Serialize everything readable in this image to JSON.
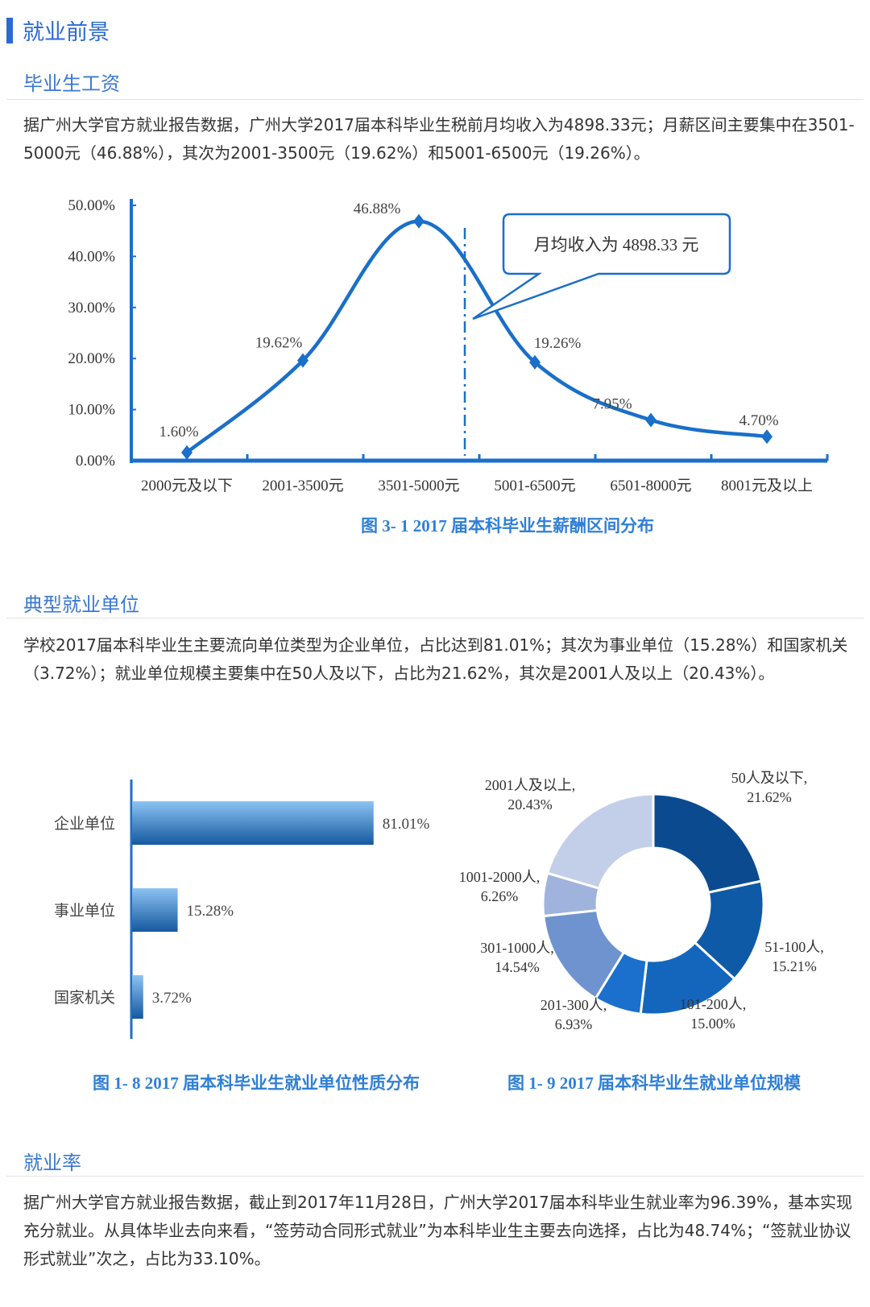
{
  "page": {
    "title": "就业前景",
    "sections": [
      {
        "heading": "毕业生工资",
        "text": "据广州大学官方就业报告数据，广州大学2017届本科毕业生税前月均收入为4898.33元；月薪区间主要集中在3501-5000元（46.88%），其次为2001-3500元（19.62%）和5001-6500元（19.26%）。"
      },
      {
        "heading": "典型就业单位",
        "text": "学校2017届本科毕业生主要流向单位类型为企业单位，占比达到81.01%；其次为事业单位（15.28%）和国家机关（3.72%）；就业单位规模主要集中在50人及以下，占比为21.62%，其次是2001人及以上（20.43%）。"
      },
      {
        "heading": "就业率",
        "text": "据广州大学官方就业报告数据，截止到2017年11月28日，广州大学2017届本科毕业生就业率为96.39%，基本实现充分就业。从具体毕业去向来看，“签劳动合同形式就业”为本科毕业生主要去向选择，占比为48.74%；“签就业协议形式就业”次之，占比为33.10%。"
      }
    ],
    "accent_color": "#2a6bd0"
  },
  "chart_data": [
    {
      "type": "line",
      "title": "图 3- 1   2017 届本科毕业生薪酬区间分布",
      "categories": [
        "2000元及以下",
        "2001-3500元",
        "3501-5000元",
        "5001-6500元",
        "6501-8000元",
        "8001元及以上"
      ],
      "values": [
        1.6,
        19.62,
        46.88,
        19.26,
        7.95,
        4.7
      ],
      "data_labels": [
        "1.60%",
        "19.62%",
        "46.88%",
        "19.26%",
        "7.95%",
        "4.70%"
      ],
      "yticks": [
        "0.00%",
        "10.00%",
        "20.00%",
        "30.00%",
        "40.00%",
        "50.00%"
      ],
      "ylim": [
        0,
        50
      ],
      "annotation": "月均收入为 4898.33 元",
      "color": "#1a6fc9"
    },
    {
      "type": "bar",
      "orientation": "horizontal",
      "title": "图 1- 8   2017 届本科毕业生就业单位性质分布",
      "categories": [
        "企业单位",
        "事业单位",
        "国家机关"
      ],
      "values": [
        81.01,
        15.28,
        3.72
      ],
      "data_labels": [
        "81.01%",
        "15.28%",
        "3.72%"
      ],
      "color": "#1f6fc5"
    },
    {
      "type": "pie",
      "donut": true,
      "title": "图 1- 9   2017 届本科毕业生就业单位规模",
      "categories": [
        "50人及以下",
        "51-100人",
        "101-200人",
        "201-300人",
        "301-1000人",
        "1001-2000人",
        "2001人及以上"
      ],
      "values": [
        21.62,
        15.21,
        15.0,
        6.93,
        14.54,
        6.26,
        20.43
      ],
      "labels": [
        [
          "50人及以下,",
          "21.62%"
        ],
        [
          "51-100人,",
          "15.21%"
        ],
        [
          "101-200人,",
          "15.00%"
        ],
        [
          "201-300人,",
          "6.93%"
        ],
        [
          "301-1000人,",
          "14.54%"
        ],
        [
          "1001-2000人,",
          "6.26%"
        ],
        [
          "2001人及以上,",
          "20.43%"
        ]
      ],
      "colors": [
        "#0b4a8f",
        "#0e5aa7",
        "#1466bd",
        "#1a70cc",
        "#6e93cf",
        "#9fb3dd",
        "#c3cfe8"
      ]
    }
  ]
}
